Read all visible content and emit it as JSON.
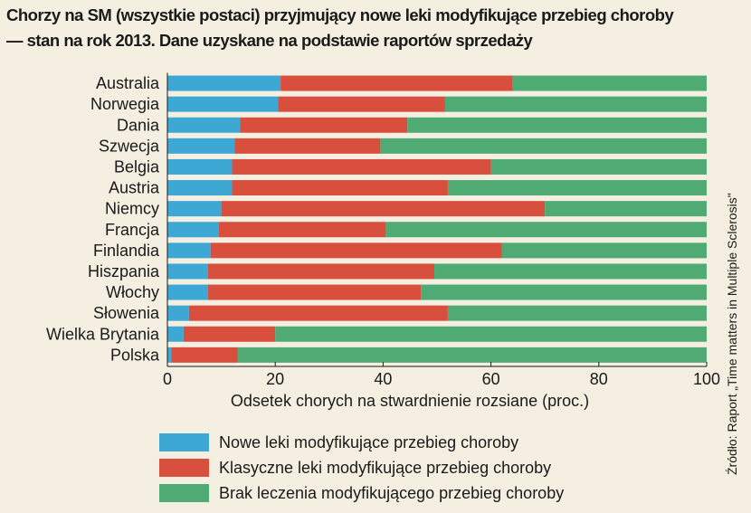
{
  "title_lines": [
    "Chorzy na SM (wszystkie postaci) przyjmujący nowe leki modyfikujące przebieg choroby",
    "— stan na rok 2013. Dane uzyskane na podstawie raportów sprzedaży"
  ],
  "source_note": "Źródło: Raport „Time matters in Multiple Sclerosis\"",
  "colors": {
    "series_new": "#3ea8d5",
    "series_classic": "#d94f3d",
    "series_none": "#4fab73",
    "background": "#f4efe1",
    "text": "#1a1a1a"
  },
  "chart_data": {
    "type": "bar",
    "orientation": "horizontal",
    "stacked": true,
    "categories": [
      "Australia",
      "Norwegia",
      "Dania",
      "Szwecja",
      "Belgia",
      "Austria",
      "Niemcy",
      "Francja",
      "Finlandia",
      "Hiszpania",
      "Włochy",
      "Słowenia",
      "Wielka Brytania",
      "Polska"
    ],
    "series": [
      {
        "name": "Nowe leki modyfikujące przebieg choroby",
        "values": [
          21,
          20.5,
          13.5,
          12.5,
          12,
          12,
          10,
          9.5,
          8,
          7.5,
          7.5,
          4,
          3,
          0.7
        ]
      },
      {
        "name": "Klasyczne leki modyfikujące przebieg choroby",
        "values": [
          43,
          31,
          31,
          27,
          48,
          40,
          60,
          31,
          54,
          42,
          39.5,
          48,
          17,
          12.3
        ]
      },
      {
        "name": "Brak leczenia modyfikującego przebieg choroby",
        "values": [
          36,
          48.5,
          55.5,
          60.5,
          40,
          48,
          30,
          59.5,
          38,
          50.5,
          53,
          48,
          80,
          87
        ]
      }
    ],
    "xlabel": "Odsetek chorych na stwardnienie rozsiane (proc.)",
    "ylabel": "",
    "xlim": [
      0,
      100
    ],
    "xticks": [
      "0",
      "20",
      "40",
      "60",
      "80",
      "100"
    ],
    "grid": false,
    "legend_position": "bottom"
  }
}
